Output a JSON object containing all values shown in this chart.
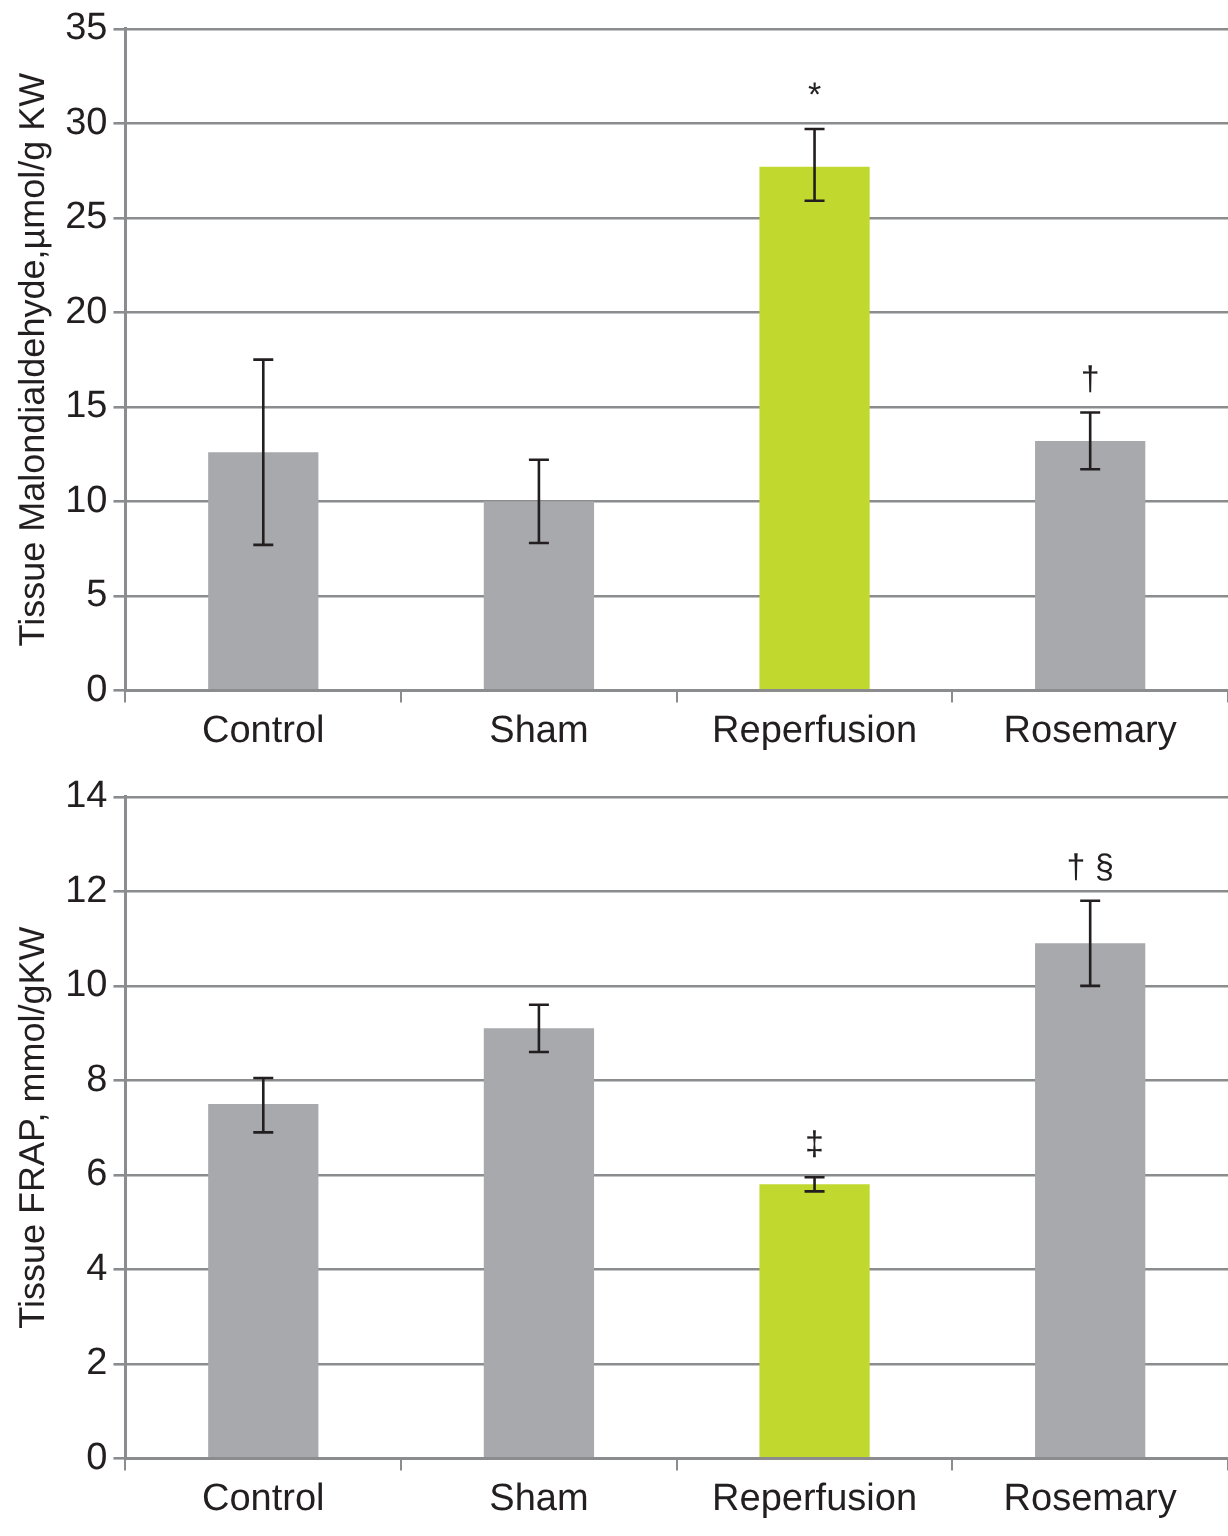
{
  "chart_data": [
    {
      "type": "bar",
      "ylabel": "Tissue Malondialdehyde,µmol/g KW",
      "categories": [
        "Control",
        "Sham",
        "Reperfusion",
        "Rosemary"
      ],
      "values": [
        12.6,
        10,
        27.7,
        13.2
      ],
      "colors": [
        "#a7a9ac",
        "#a7a9ac",
        "#c1d82f",
        "#a7a9ac"
      ],
      "errors": [
        [
          7.7,
          17.5
        ],
        [
          7.8,
          12.2
        ],
        [
          25.9,
          29.7
        ],
        [
          11.7,
          14.7
        ]
      ],
      "ylim": [
        0,
        35
      ],
      "yticks": [
        0,
        5,
        10,
        15,
        20,
        25,
        30,
        35
      ],
      "grid": "y",
      "annotations": [
        {
          "text": "*",
          "x": "Reperfusion",
          "y": 27.7
        },
        {
          "text": "†",
          "x": "Rosemary",
          "y": 13.2
        }
      ]
    },
    {
      "type": "bar",
      "ylabel": "Tissue FRAP, mmol/gKW",
      "categories": [
        "Control",
        "Sham",
        "Reperfusion",
        "Rosemary"
      ],
      "values": [
        7.5,
        9.1,
        5.8,
        10.9
      ],
      "colors": [
        "#a7a9ac",
        "#a7a9ac",
        "#c1d82f",
        "#a7a9ac"
      ],
      "errors": [
        [
          6.9,
          8.05
        ],
        [
          8.6,
          9.6
        ],
        [
          5.65,
          5.95
        ],
        [
          10.0,
          11.8
        ]
      ],
      "ylim": [
        0,
        14
      ],
      "yticks": [
        0,
        2,
        4,
        6,
        8,
        10,
        12,
        14
      ],
      "grid": "y",
      "annotations": [
        {
          "text": "‡",
          "x": "Reperfusion",
          "y": 5.8
        },
        {
          "text": "† §",
          "x": "Rosemary",
          "y": 10.9
        }
      ]
    }
  ]
}
